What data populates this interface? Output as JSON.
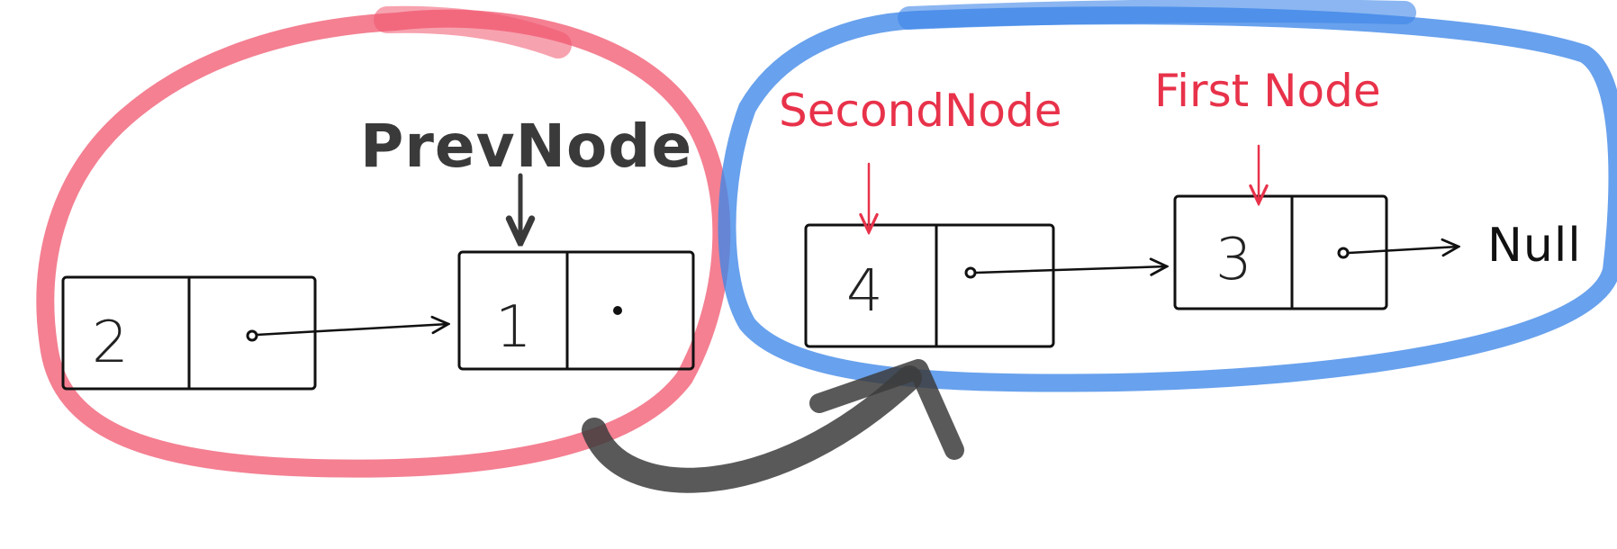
{
  "labels": {
    "prev_node": "PrevNode",
    "second_node": "SecondNode",
    "first_node": "First Node",
    "null_label": "Null"
  },
  "nodes": [
    {
      "value": "2"
    },
    {
      "value": "1"
    },
    {
      "value": "4"
    },
    {
      "value": "3"
    }
  ],
  "colors": {
    "left_group": "#f0556e",
    "right_group": "#3d86e8",
    "big_arrow": "#3c3c3c",
    "red_text": "#e8324a",
    "ink": "#111111"
  }
}
